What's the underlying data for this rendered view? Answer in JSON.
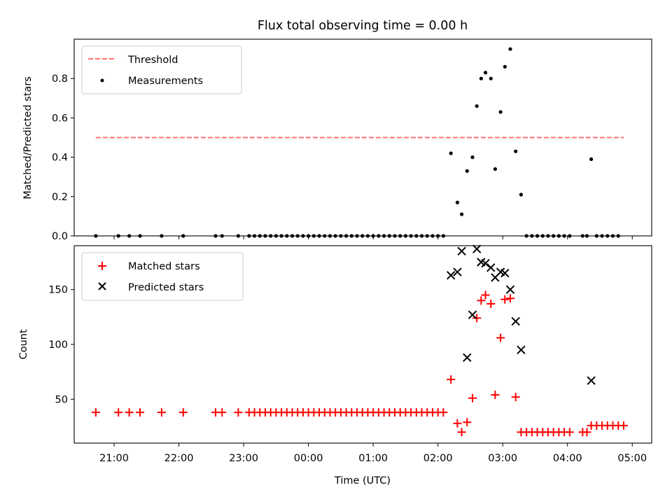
{
  "title": "Flux total observing time = 0.00 h",
  "chart_data": [
    {
      "type": "scatter",
      "panel": "top",
      "ylabel": "Matched/Predicted stars",
      "ylim": [
        0,
        1.0
      ],
      "yticks": [
        0.0,
        0.2,
        0.4,
        0.6,
        0.8
      ],
      "grid": false,
      "legend_position": "top-left",
      "threshold": {
        "name": "Threshold",
        "value": 0.5,
        "x_start": "20:43",
        "x_end": "04:52",
        "color": "#ff7070",
        "style": "dashed"
      },
      "series": [
        {
          "name": "Measurements",
          "color": "#000000",
          "marker": "dot",
          "points": [
            [
              "20:43",
              0
            ],
            [
              "21:04",
              0
            ],
            [
              "21:14",
              0
            ],
            [
              "21:24",
              0
            ],
            [
              "21:44",
              0
            ],
            [
              "22:04",
              0
            ],
            [
              "22:34",
              0
            ],
            [
              "22:40",
              0
            ],
            [
              "22:55",
              0
            ],
            [
              "23:05",
              0
            ],
            [
              "23:10",
              0
            ],
            [
              "23:15",
              0
            ],
            [
              "23:20",
              0
            ],
            [
              "23:25",
              0
            ],
            [
              "23:30",
              0
            ],
            [
              "23:35",
              0
            ],
            [
              "23:40",
              0
            ],
            [
              "23:45",
              0
            ],
            [
              "23:50",
              0
            ],
            [
              "23:55",
              0
            ],
            [
              "00:00",
              0
            ],
            [
              "00:05",
              0
            ],
            [
              "00:10",
              0
            ],
            [
              "00:15",
              0
            ],
            [
              "00:20",
              0
            ],
            [
              "00:25",
              0
            ],
            [
              "00:30",
              0
            ],
            [
              "00:35",
              0
            ],
            [
              "00:40",
              0
            ],
            [
              "00:45",
              0
            ],
            [
              "00:50",
              0
            ],
            [
              "00:55",
              0
            ],
            [
              "01:00",
              0
            ],
            [
              "01:05",
              0
            ],
            [
              "01:10",
              0
            ],
            [
              "01:15",
              0
            ],
            [
              "01:20",
              0
            ],
            [
              "01:25",
              0
            ],
            [
              "01:30",
              0
            ],
            [
              "01:35",
              0
            ],
            [
              "01:40",
              0
            ],
            [
              "01:45",
              0
            ],
            [
              "01:50",
              0
            ],
            [
              "01:55",
              0
            ],
            [
              "02:00",
              0
            ],
            [
              "02:05",
              0
            ],
            [
              "02:12",
              0.42
            ],
            [
              "02:18",
              0.17
            ],
            [
              "02:22",
              0.11
            ],
            [
              "02:27",
              0.33
            ],
            [
              "02:32",
              0.4
            ],
            [
              "02:36",
              0.66
            ],
            [
              "02:40",
              0.8
            ],
            [
              "02:44",
              0.83
            ],
            [
              "02:49",
              0.8
            ],
            [
              "02:53",
              0.34
            ],
            [
              "02:58",
              0.63
            ],
            [
              "03:02",
              0.86
            ],
            [
              "03:07",
              0.95
            ],
            [
              "03:12",
              0.43
            ],
            [
              "03:17",
              0.21
            ],
            [
              "03:22",
              0
            ],
            [
              "03:27",
              0
            ],
            [
              "03:32",
              0
            ],
            [
              "03:37",
              0
            ],
            [
              "03:42",
              0
            ],
            [
              "03:47",
              0
            ],
            [
              "03:52",
              0
            ],
            [
              "03:57",
              0
            ],
            [
              "04:02",
              0
            ],
            [
              "04:14",
              0
            ],
            [
              "04:18",
              0
            ],
            [
              "04:22",
              0.39
            ],
            [
              "04:27",
              0
            ],
            [
              "04:32",
              0
            ],
            [
              "04:37",
              0
            ],
            [
              "04:42",
              0
            ],
            [
              "04:47",
              0
            ]
          ]
        }
      ]
    },
    {
      "type": "scatter",
      "panel": "bottom",
      "xlabel": "Time (UTC)",
      "ylabel": "Count",
      "ylim": [
        10,
        190
      ],
      "yticks": [
        50,
        100,
        150
      ],
      "xlim": [
        "20:23",
        "05:18"
      ],
      "xticks": [
        "21:00",
        "22:00",
        "23:00",
        "00:00",
        "01:00",
        "02:00",
        "03:00",
        "04:00",
        "05:00"
      ],
      "grid": false,
      "legend_position": "top-left",
      "series": [
        {
          "name": "Matched stars",
          "color": "#ff0000",
          "marker": "plus",
          "points": [
            [
              "20:43",
              38
            ],
            [
              "21:04",
              38
            ],
            [
              "21:14",
              38
            ],
            [
              "21:24",
              38
            ],
            [
              "21:44",
              38
            ],
            [
              "22:04",
              38
            ],
            [
              "22:34",
              38
            ],
            [
              "22:40",
              38
            ],
            [
              "22:55",
              38
            ],
            [
              "23:05",
              38
            ],
            [
              "23:10",
              38
            ],
            [
              "23:15",
              38
            ],
            [
              "23:20",
              38
            ],
            [
              "23:25",
              38
            ],
            [
              "23:30",
              38
            ],
            [
              "23:35",
              38
            ],
            [
              "23:40",
              38
            ],
            [
              "23:45",
              38
            ],
            [
              "23:50",
              38
            ],
            [
              "23:55",
              38
            ],
            [
              "00:00",
              38
            ],
            [
              "00:05",
              38
            ],
            [
              "00:10",
              38
            ],
            [
              "00:15",
              38
            ],
            [
              "00:20",
              38
            ],
            [
              "00:25",
              38
            ],
            [
              "00:30",
              38
            ],
            [
              "00:35",
              38
            ],
            [
              "00:40",
              38
            ],
            [
              "00:45",
              38
            ],
            [
              "00:50",
              38
            ],
            [
              "00:55",
              38
            ],
            [
              "01:00",
              38
            ],
            [
              "01:05",
              38
            ],
            [
              "01:10",
              38
            ],
            [
              "01:15",
              38
            ],
            [
              "01:20",
              38
            ],
            [
              "01:25",
              38
            ],
            [
              "01:30",
              38
            ],
            [
              "01:35",
              38
            ],
            [
              "01:40",
              38
            ],
            [
              "01:45",
              38
            ],
            [
              "01:50",
              38
            ],
            [
              "01:55",
              38
            ],
            [
              "02:00",
              38
            ],
            [
              "02:05",
              38
            ],
            [
              "02:12",
              68
            ],
            [
              "02:18",
              28
            ],
            [
              "02:22",
              20
            ],
            [
              "02:27",
              29
            ],
            [
              "02:32",
              51
            ],
            [
              "02:36",
              124
            ],
            [
              "02:40",
              140
            ],
            [
              "02:44",
              145
            ],
            [
              "02:49",
              137
            ],
            [
              "02:53",
              54
            ],
            [
              "02:58",
              106
            ],
            [
              "03:02",
              141
            ],
            [
              "03:07",
              142
            ],
            [
              "03:12",
              52
            ],
            [
              "03:17",
              20
            ],
            [
              "03:22",
              20
            ],
            [
              "03:27",
              20
            ],
            [
              "03:32",
              20
            ],
            [
              "03:37",
              20
            ],
            [
              "03:42",
              20
            ],
            [
              "03:47",
              20
            ],
            [
              "03:52",
              20
            ],
            [
              "03:57",
              20
            ],
            [
              "04:02",
              20
            ],
            [
              "04:14",
              20
            ],
            [
              "04:18",
              20
            ],
            [
              "04:22",
              26
            ],
            [
              "04:27",
              26
            ],
            [
              "04:32",
              26
            ],
            [
              "04:37",
              26
            ],
            [
              "04:42",
              26
            ],
            [
              "04:47",
              26
            ],
            [
              "04:52",
              26
            ]
          ]
        },
        {
          "name": "Predicted stars",
          "color": "#000000",
          "marker": "x",
          "points": [
            [
              "02:12",
              163
            ],
            [
              "02:18",
              166
            ],
            [
              "02:22",
              185
            ],
            [
              "02:27",
              88
            ],
            [
              "02:32",
              127
            ],
            [
              "02:36",
              187
            ],
            [
              "02:40",
              175
            ],
            [
              "02:44",
              174
            ],
            [
              "02:49",
              170
            ],
            [
              "02:53",
              161
            ],
            [
              "02:58",
              166
            ],
            [
              "03:02",
              165
            ],
            [
              "03:07",
              150
            ],
            [
              "03:12",
              121
            ],
            [
              "03:17",
              95
            ],
            [
              "04:22",
              67
            ]
          ]
        }
      ]
    }
  ]
}
